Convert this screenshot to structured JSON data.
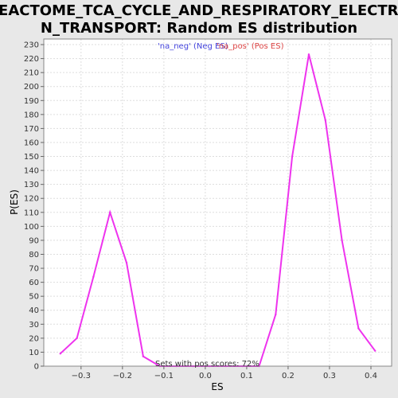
{
  "chart_data": {
    "type": "line",
    "title_lines": [
      "REACTOME_TCA_CYCLE_AND_RESPIRATORY_ELECTRO",
      "N_TRANSPORT: Random ES distribution"
    ],
    "xlabel": "ES",
    "ylabel": "P(ES)",
    "xlim": [
      -0.39,
      0.45
    ],
    "ylim": [
      0,
      234
    ],
    "x_ticks": [
      -0.3,
      -0.2,
      -0.1,
      0.0,
      0.1,
      0.2,
      0.3,
      0.4
    ],
    "x_tick_labels": [
      "−0.3",
      "−0.2",
      "−0.1",
      "0.0",
      "0.1",
      "0.2",
      "0.3",
      "0.4"
    ],
    "y_ticks": [
      0,
      10,
      20,
      30,
      40,
      50,
      60,
      70,
      80,
      90,
      100,
      110,
      120,
      130,
      140,
      150,
      160,
      170,
      180,
      190,
      200,
      210,
      220,
      230
    ],
    "y_tick_labels": [
      "0",
      "10",
      "20",
      "30",
      "40",
      "50",
      "60",
      "70",
      "80",
      "90",
      "100",
      "110",
      "120",
      "130",
      "140",
      "150",
      "160",
      "170",
      "180",
      "190",
      "200",
      "210",
      "220",
      "230"
    ],
    "grid": true,
    "legend": [
      {
        "text": "'na_neg' (Neg ES)",
        "color": "#4444dd"
      },
      {
        "text": "'na_pos' (Pos ES)",
        "color": "#dd4444"
      }
    ],
    "annotation": "Sets with pos scores: 72%",
    "series": [
      {
        "color": "#ee33ee",
        "x": [
          -0.35,
          -0.31,
          -0.27,
          -0.23,
          -0.19,
          -0.15,
          -0.11,
          -0.07,
          -0.03,
          0.01,
          0.05,
          0.09,
          0.13,
          0.17,
          0.21,
          0.25,
          0.29,
          0.33,
          0.37,
          0.41
        ],
        "y": [
          9,
          20,
          64,
          110,
          74,
          7,
          0,
          0,
          0,
          0,
          0,
          0,
          0,
          37,
          150,
          223,
          176,
          90,
          27,
          11
        ]
      }
    ]
  }
}
